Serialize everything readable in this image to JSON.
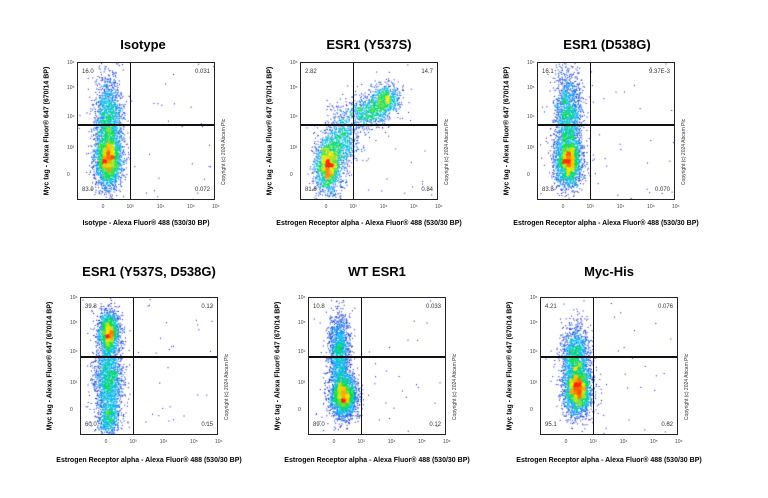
{
  "chart_data": [
    {
      "type": "scatter",
      "title": "Isotype",
      "xlabel": "Isotype - Alexa Fluor® 488 (530/30 BP)",
      "ylabel": "Myc tag - Alexa Fluor® 647 (670/14 BP)",
      "quadrants": {
        "upper_left": "16.0",
        "upper_right": "0.031",
        "lower_left": "83.9",
        "lower_right": "0.072"
      },
      "x_ticks": [
        "0",
        "10³",
        "10⁴",
        "10⁵",
        "10⁶"
      ],
      "y_ticks": [
        "0",
        "10³",
        "10⁴",
        "10⁵",
        "10⁶"
      ],
      "copyright": "Copyright (c) 2024 Abcam Plc"
    },
    {
      "type": "scatter",
      "title": "ESR1 (Y537S)",
      "xlabel": "Estrogen Receptor alpha - Alexa Fluor® 488 (530/30 BP)",
      "ylabel": "Myc tag - Alexa Fluor® 647 (670/14 BP)",
      "quadrants": {
        "upper_left": "2.82",
        "upper_right": "14.7",
        "lower_left": "81.6",
        "lower_right": "0.84"
      },
      "x_ticks": [
        "0",
        "10³",
        "10⁴",
        "10⁵",
        "10⁶"
      ],
      "y_ticks": [
        "0",
        "10³",
        "10⁴",
        "10⁵",
        "10⁶"
      ],
      "copyright": "Copyright (c) 2024 Abcam Plc"
    },
    {
      "type": "scatter",
      "title": "ESR1 (D538G)",
      "xlabel": "Estrogen Receptor alpha - Alexa Fluor® 488 (530/30 BP)",
      "ylabel": "Myc tag - Alexa Fluor® 647 (670/14 BP)",
      "quadrants": {
        "upper_left": "16.1",
        "upper_right": "9.37E-3",
        "lower_left": "83.8",
        "lower_right": "0.070"
      },
      "x_ticks": [
        "0",
        "10³",
        "10⁴",
        "10⁵",
        "10⁶"
      ],
      "y_ticks": [
        "0",
        "10³",
        "10⁴",
        "10⁵",
        "10⁶"
      ],
      "copyright": "Copyright (c) 2024 Abcam Plc"
    },
    {
      "type": "scatter",
      "title": "ESR1 (Y537S, D538G)",
      "xlabel": "Estrogen Receptor alpha - Alexa Fluor® 488 (530/30 BP)",
      "ylabel": "Myc tag - Alexa Fluor® 647 (670/14 BP)",
      "quadrants": {
        "upper_left": "39.8",
        "upper_right": "0.12",
        "lower_left": "60.0",
        "lower_right": "0.15"
      },
      "x_ticks": [
        "0",
        "10³",
        "10⁴",
        "10⁵",
        "10⁶"
      ],
      "y_ticks": [
        "0",
        "10³",
        "10⁴",
        "10⁵",
        "10⁶"
      ],
      "copyright": "Copyright (c) 2024 Abcam Plc"
    },
    {
      "type": "scatter",
      "title": "WT ESR1",
      "xlabel": "Estrogen Receptor alpha - Alexa Fluor® 488 (530/30 BP)",
      "ylabel": "Myc tag - Alexa Fluor® 647 (670/14 BP)",
      "quadrants": {
        "upper_left": "10.8",
        "upper_right": "0.033",
        "lower_left": "89.0",
        "lower_right": "0.12"
      },
      "x_ticks": [
        "0",
        "10³",
        "10⁴",
        "10⁵",
        "10⁶"
      ],
      "y_ticks": [
        "0",
        "10³",
        "10⁴",
        "10⁵",
        "10⁶"
      ],
      "copyright": "Copyright (c) 2024 Abcam Plc"
    },
    {
      "type": "scatter",
      "title": "Myc-His",
      "xlabel": "Estrogen Receptor alpha - Alexa Fluor® 488 (530/30 BP)",
      "ylabel": "Myc tag - Alexa Fluor® 647 (670/14 BP)",
      "quadrants": {
        "upper_left": "4.21",
        "upper_right": "0.076",
        "lower_left": "95.1",
        "lower_right": "0.62"
      },
      "x_ticks": [
        "0",
        "10³",
        "10⁴",
        "10⁵",
        "10⁶"
      ],
      "y_ticks": [
        "0",
        "10³",
        "10⁴",
        "10⁵",
        "10⁶"
      ],
      "copyright": "Copyright (c) 2024 Abcam Plc"
    }
  ]
}
